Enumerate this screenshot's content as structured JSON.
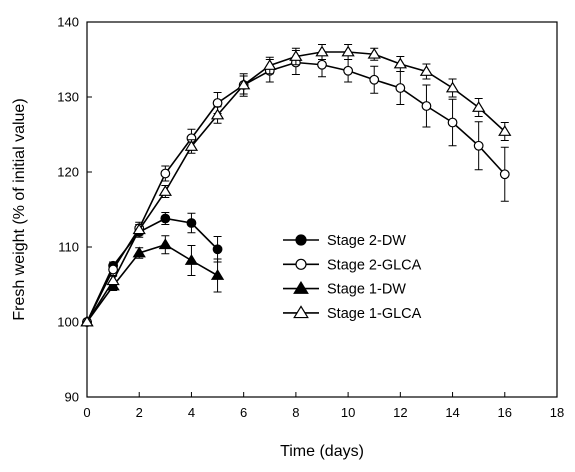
{
  "chart_data": {
    "type": "line",
    "xlabel": "Time (days)",
    "ylabel": "Fresh weight (% of initial value)",
    "xlim": [
      0,
      18
    ],
    "ylim": [
      90,
      140
    ],
    "xticks": [
      0,
      2,
      4,
      6,
      8,
      10,
      12,
      14,
      16,
      18
    ],
    "yticks": [
      90,
      100,
      110,
      120,
      130,
      140
    ],
    "xtick_labels": [
      "0",
      "2",
      "4",
      "6",
      "8",
      "10",
      "12",
      "14",
      "16",
      "18"
    ],
    "ytick_labels": [
      "90",
      "100",
      "110",
      "120",
      "130",
      "140"
    ],
    "grid": false,
    "legend_position": "center-right",
    "series": [
      {
        "name": "Stage 2-DW",
        "marker": "filled-circle",
        "x": [
          0,
          1,
          2,
          3,
          4,
          5
        ],
        "y": [
          100,
          107.5,
          112,
          113.8,
          113.2,
          109.7
        ],
        "err": [
          0,
          0.5,
          0.7,
          0.8,
          1.3,
          1.7
        ]
      },
      {
        "name": "Stage 2-GLCA",
        "marker": "open-circle",
        "x": [
          0,
          1,
          2,
          3,
          4,
          5,
          6,
          7,
          8,
          9,
          10,
          11,
          12,
          13,
          14,
          15,
          16
        ],
        "y": [
          100,
          107,
          112.5,
          119.8,
          124.5,
          129.2,
          131.6,
          133.5,
          134.6,
          134.3,
          133.5,
          132.3,
          131.2,
          128.8,
          126.6,
          123.5,
          119.7
        ],
        "err": [
          0,
          0.8,
          0.8,
          1,
          1.2,
          1.4,
          1.5,
          1.5,
          1.6,
          1.6,
          1.5,
          1.8,
          2.2,
          2.8,
          3.1,
          3.2,
          3.6
        ]
      },
      {
        "name": "Stage 1-DW",
        "marker": "filled-triangle",
        "x": [
          0,
          1,
          2,
          3,
          4,
          5
        ],
        "y": [
          100,
          104.8,
          109.2,
          110.3,
          108.2,
          106.2
        ],
        "err": [
          0,
          0.6,
          0.7,
          1.2,
          2,
          2.2
        ]
      },
      {
        "name": "Stage 1-GLCA",
        "marker": "open-triangle",
        "x": [
          0,
          1,
          2,
          3,
          4,
          5,
          6,
          7,
          8,
          9,
          10,
          11,
          12,
          13,
          14,
          15,
          16
        ],
        "y": [
          100,
          105.5,
          112.3,
          117.4,
          123.4,
          127.6,
          131.6,
          134.2,
          135.4,
          136,
          136,
          135.7,
          134.4,
          133.4,
          131.2,
          128.6,
          125.4
        ],
        "err": [
          0,
          0.6,
          0.7,
          0.8,
          0.9,
          1.1,
          1.2,
          1.1,
          1.1,
          1,
          1,
          0.8,
          1,
          1,
          1.2,
          1.2,
          1.2
        ]
      }
    ]
  }
}
